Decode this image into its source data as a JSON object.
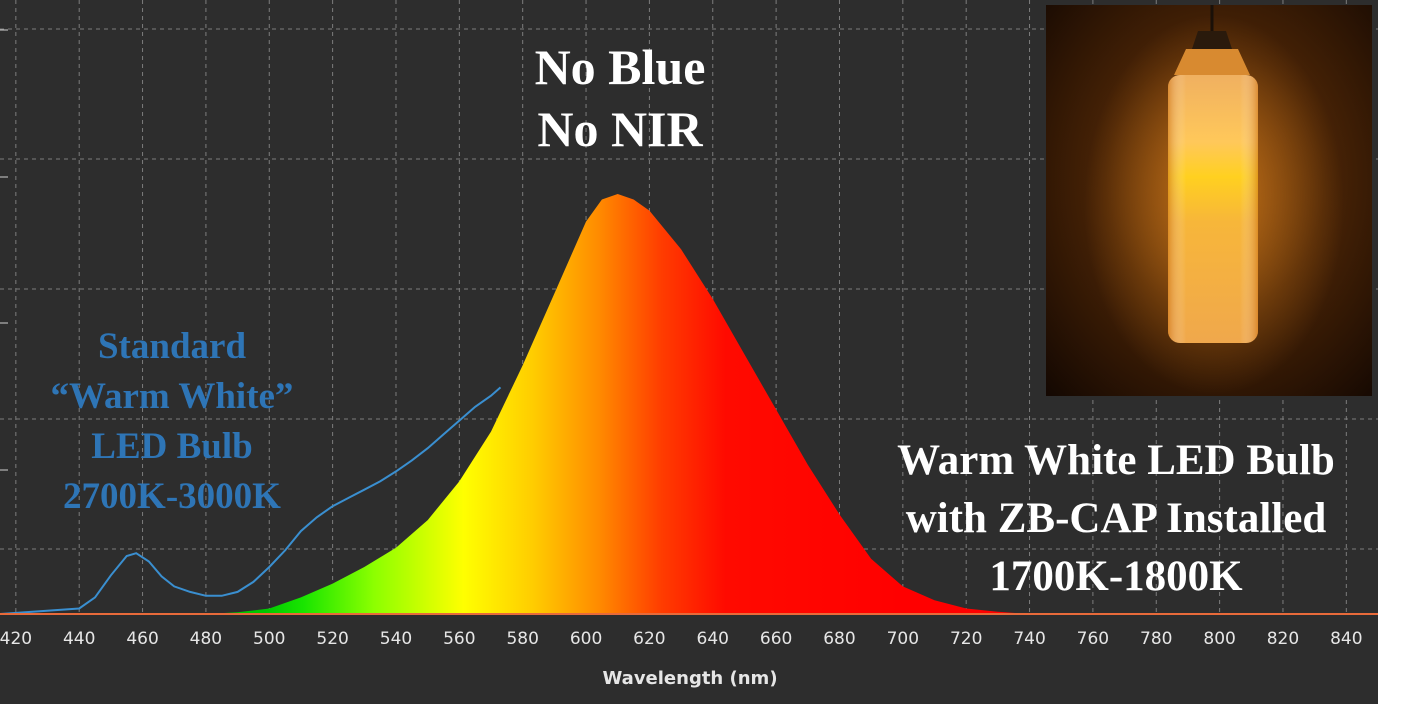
{
  "chart_data": {
    "type": "area",
    "title": "",
    "xlabel": "Wavelength (nm)",
    "ylabel": "",
    "xlim": [
      415,
      850
    ],
    "ylim": [
      0,
      1.0
    ],
    "x_ticks": [
      420,
      440,
      460,
      480,
      500,
      520,
      540,
      560,
      580,
      600,
      620,
      640,
      660,
      680,
      700,
      720,
      740,
      760,
      780,
      800,
      820,
      840
    ],
    "grid": true,
    "series": [
      {
        "name": "Standard “Warm White” LED Bulb 2700K-3000K",
        "style": "line",
        "color": "#3a8fd0",
        "x": [
          415,
          440,
          445,
          450,
          455,
          458,
          462,
          466,
          470,
          475,
          480,
          485,
          490,
          495,
          500,
          505,
          510,
          515,
          520,
          525,
          530,
          535,
          540,
          545,
          550,
          555,
          560,
          565,
          570,
          573
        ],
        "y": [
          0.0,
          0.01,
          0.03,
          0.07,
          0.105,
          0.11,
          0.095,
          0.068,
          0.05,
          0.04,
          0.033,
          0.033,
          0.04,
          0.058,
          0.085,
          0.115,
          0.15,
          0.175,
          0.195,
          0.21,
          0.225,
          0.24,
          0.258,
          0.278,
          0.3,
          0.325,
          0.35,
          0.375,
          0.395,
          0.41
        ]
      },
      {
        "name": "Warm White LED Bulb with ZB-CAP Installed 1700K-1800K",
        "style": "spectrum-fill",
        "x": [
          415,
          480,
          490,
          500,
          510,
          520,
          530,
          540,
          550,
          560,
          570,
          580,
          590,
          600,
          605,
          610,
          615,
          620,
          630,
          640,
          650,
          660,
          670,
          680,
          690,
          700,
          710,
          720,
          730,
          740,
          760,
          780,
          800,
          820,
          850
        ],
        "y": [
          0.0,
          0.0,
          0.003,
          0.01,
          0.03,
          0.055,
          0.085,
          0.12,
          0.17,
          0.24,
          0.33,
          0.45,
          0.58,
          0.71,
          0.75,
          0.76,
          0.75,
          0.73,
          0.66,
          0.57,
          0.47,
          0.37,
          0.27,
          0.18,
          0.1,
          0.05,
          0.025,
          0.01,
          0.004,
          0.0,
          0.0,
          0.0,
          0.0,
          0.0,
          0.0
        ]
      }
    ]
  },
  "annotations": {
    "top": [
      "No Blue",
      "No NIR"
    ],
    "standard": [
      "Standard",
      "“Warm White”",
      "LED Bulb",
      "2700K-3000K"
    ],
    "zb_cap": [
      "Warm White LED Bulb",
      "with ZB-CAP Installed",
      "1700K-1800K"
    ]
  },
  "colors": {
    "background": "#2d2d2d",
    "grid": "#7d7d7d",
    "standard_series": "#3a8fd0",
    "standard_label": "#2e75b6",
    "baseline": "#e86a3a"
  },
  "photo": {
    "subject": "lit cylindrical pendant lamp glowing amber",
    "glow_color": "#f5a020"
  }
}
